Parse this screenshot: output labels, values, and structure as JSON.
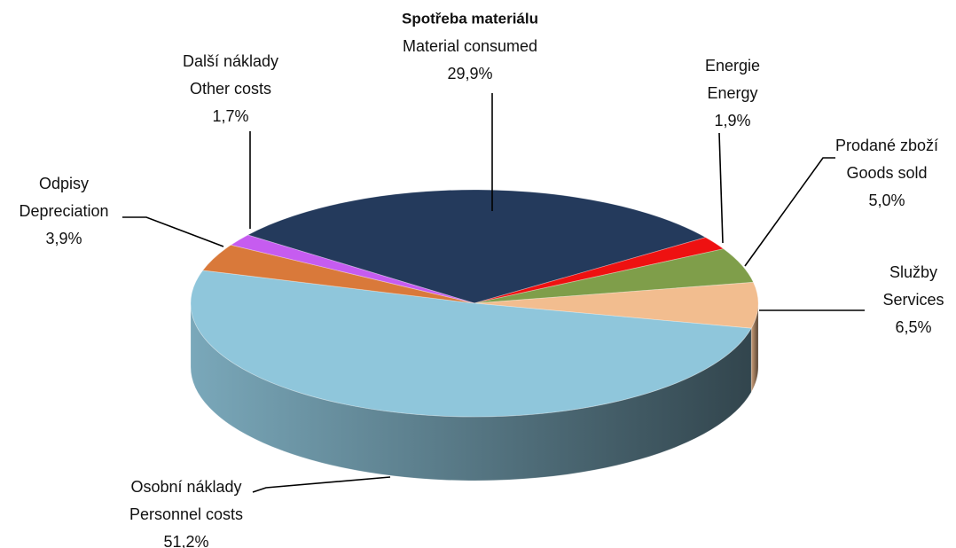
{
  "chart_data": {
    "type": "pie3d",
    "categories": [
      "Spotřeba materiálu",
      "Energie",
      "Prodané zboží",
      "Služby",
      "Osobní náklady",
      "Odpisy",
      "Další náklady"
    ],
    "categories_en": [
      "Material consumed",
      "Energy",
      "Goods sold",
      "Services",
      "Personnel costs",
      "Depreciation",
      "Other costs"
    ],
    "values": [
      29.9,
      1.9,
      5.0,
      6.5,
      51.2,
      3.9,
      1.7
    ],
    "value_labels": [
      "29,9%",
      "1,9%",
      "5,0%",
      "6,5%",
      "51,2%",
      "3,9%",
      "1,7%"
    ],
    "colors": [
      "#243a5c",
      "#ee1111",
      "#7f9e4a",
      "#f2bd8f",
      "#8fc6db",
      "#d9793a",
      "#c65cf0"
    ]
  }
}
